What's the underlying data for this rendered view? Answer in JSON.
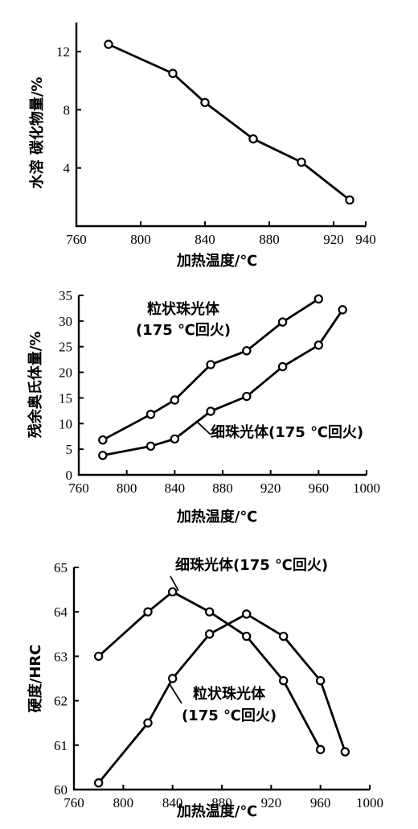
{
  "chart_data": [
    {
      "type": "line",
      "xlabel": "加热温度/℃",
      "ylabel": "水溶 碳化物量/%",
      "xlim": [
        760,
        940
      ],
      "ylim": [
        0,
        14
      ],
      "x_ticks": [
        760,
        800,
        840,
        880,
        920,
        940
      ],
      "y_ticks": [
        4,
        8,
        12
      ],
      "grid": false,
      "series": [
        {
          "x": [
            780,
            820,
            840,
            870,
            900,
            930
          ],
          "y": [
            12.5,
            10.5,
            8.5,
            6.0,
            4.4,
            1.8
          ]
        }
      ],
      "annotations": []
    },
    {
      "type": "line",
      "xlabel": "加热温度/℃",
      "ylabel": "残余奥氏体量/%",
      "xlim": [
        760,
        1000
      ],
      "ylim": [
        0,
        35
      ],
      "x_ticks": [
        760,
        800,
        840,
        880,
        920,
        960,
        1000
      ],
      "y_ticks": [
        0,
        5,
        10,
        15,
        20,
        25,
        30,
        35
      ],
      "grid": false,
      "series": [
        {
          "name": "粒状珠光体(175 ℃回火)",
          "x": [
            780,
            820,
            840,
            870,
            900,
            930,
            960
          ],
          "y": [
            6.8,
            11.8,
            14.6,
            21.5,
            24.2,
            29.8,
            34.3
          ]
        },
        {
          "name": "细珠光体(175 ℃回火)",
          "x": [
            780,
            820,
            840,
            870,
            900,
            930,
            960,
            980
          ],
          "y": [
            3.8,
            5.6,
            7.0,
            12.4,
            15.3,
            21.1,
            25.3,
            32.2
          ]
        }
      ],
      "annotations": [
        {
          "series": 0,
          "lines": [
            "粒状珠光体",
            "(175 ℃回火)"
          ]
        },
        {
          "series": 1,
          "lines": [
            "细珠光体(175 ℃回火)"
          ]
        }
      ]
    },
    {
      "type": "line",
      "xlabel": "加热温度/℃",
      "ylabel": "硬度/HRC",
      "xlim": [
        760,
        1000
      ],
      "ylim": [
        60,
        65
      ],
      "x_ticks": [
        760,
        800,
        840,
        880,
        920,
        960,
        1000
      ],
      "y_ticks": [
        60,
        61,
        62,
        63,
        64,
        65
      ],
      "grid": false,
      "series": [
        {
          "name": "细珠光体(175 ℃回火)",
          "x": [
            780,
            820,
            840,
            870,
            900,
            930,
            960
          ],
          "y": [
            63.0,
            64.0,
            64.45,
            64.0,
            63.45,
            62.45,
            60.9
          ]
        },
        {
          "name": "粒状珠光体(175 ℃回火)",
          "x": [
            780,
            820,
            840,
            870,
            900,
            930,
            960,
            980
          ],
          "y": [
            60.15,
            61.5,
            62.5,
            63.5,
            63.95,
            63.45,
            62.45,
            60.85
          ]
        }
      ],
      "annotations": [
        {
          "series": 0,
          "lines": [
            "细珠光体(175 ℃回火)"
          ]
        },
        {
          "series": 1,
          "lines": [
            "粒状珠光体",
            "(175 ℃回火)"
          ]
        }
      ]
    }
  ]
}
